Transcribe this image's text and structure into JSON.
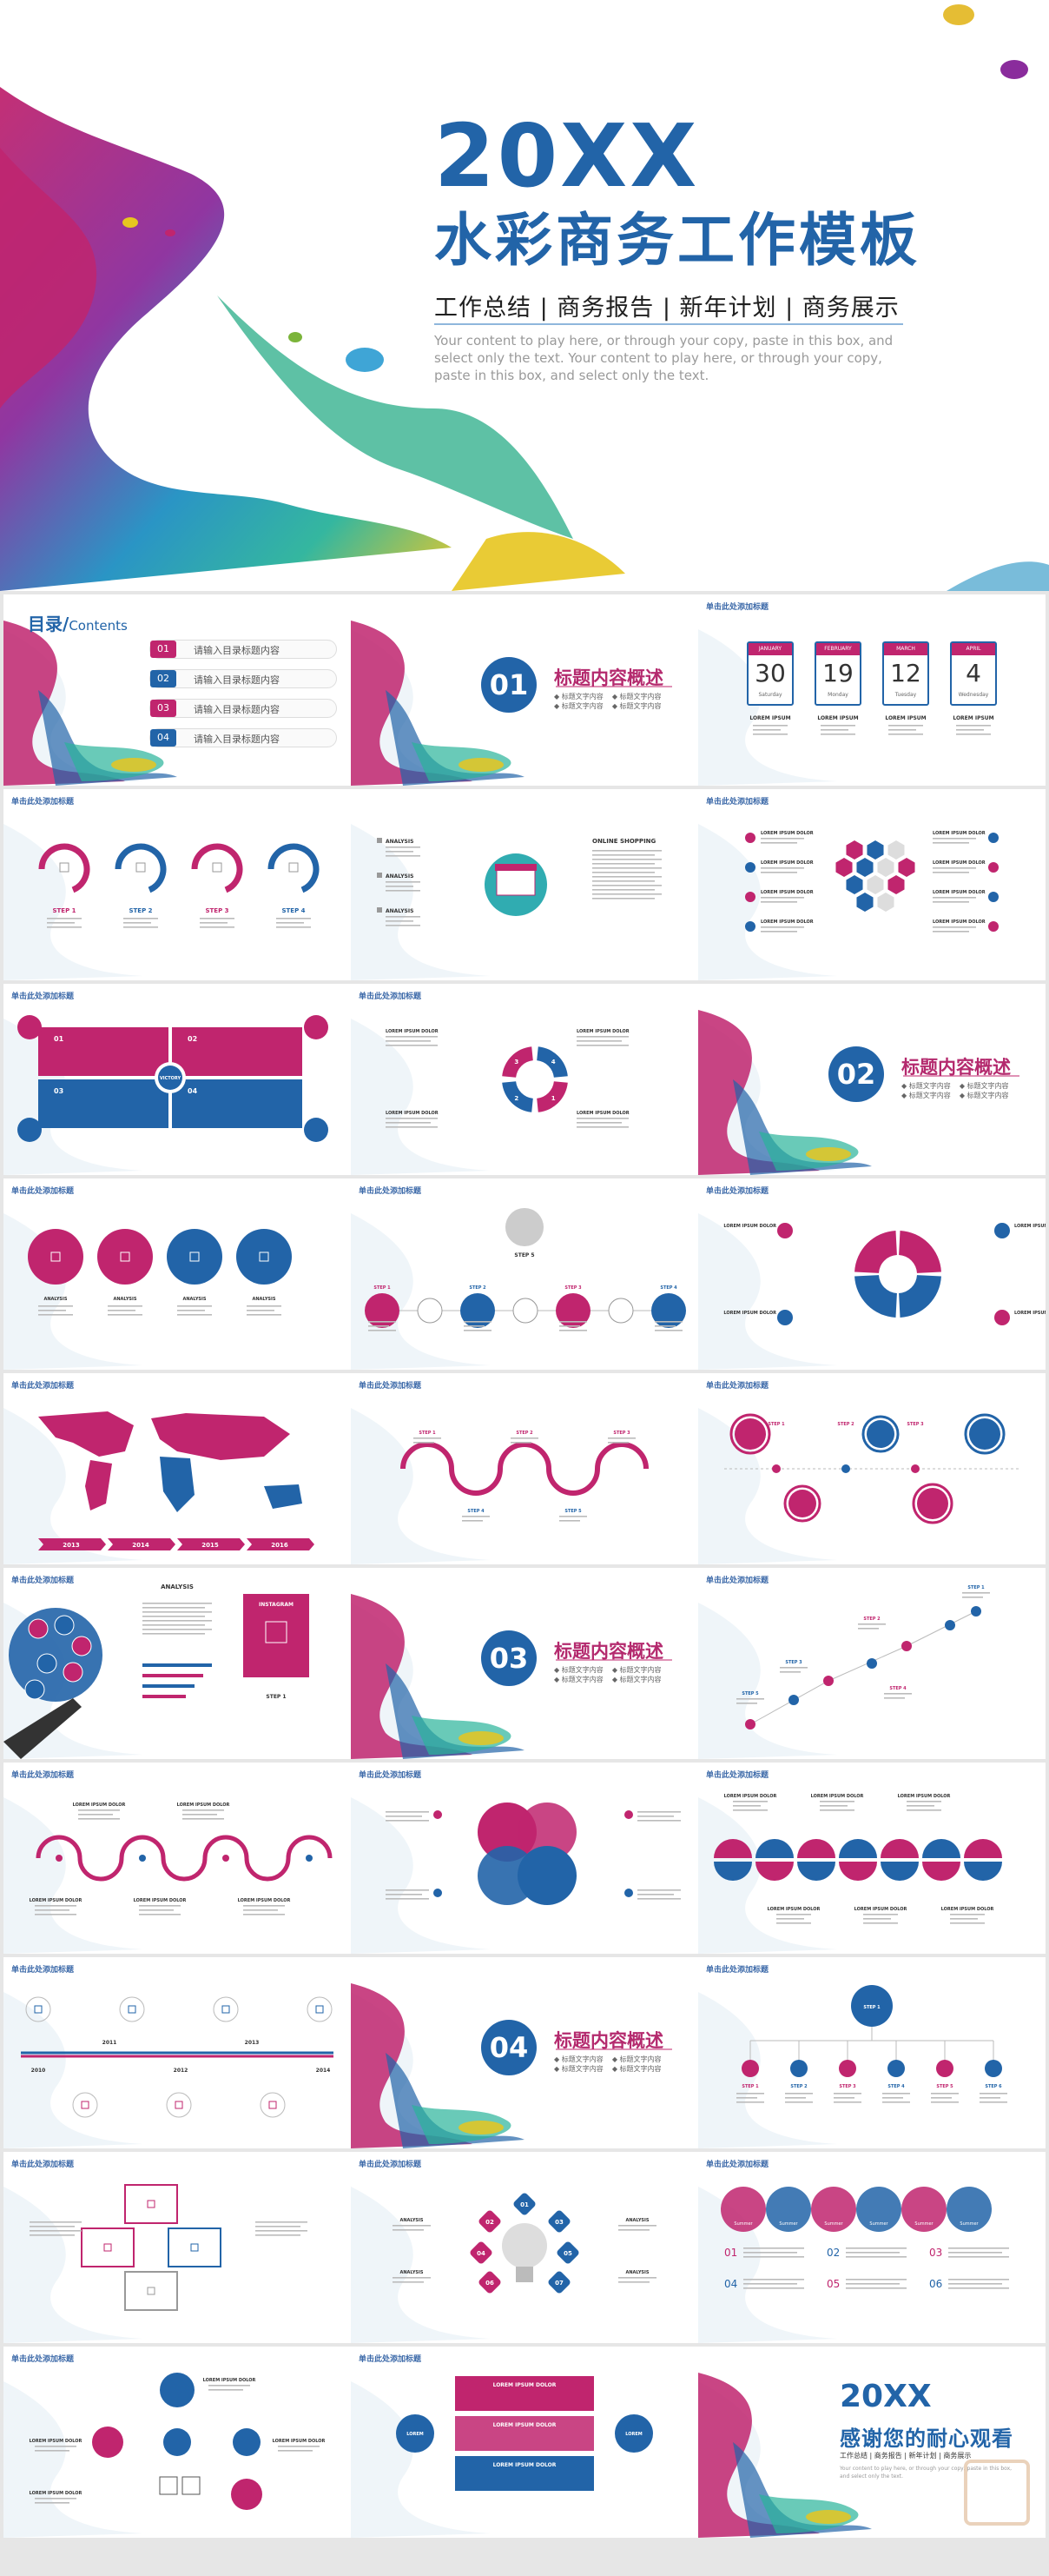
{
  "cover": {
    "big": "20XX",
    "title": "水彩商务工作模板",
    "subtitle": "工作总结 | 商务报告 | 新年计划 | 商务展示",
    "body": "Your content to play here, or through your copy, paste in this box, and select only the text. Your content to play here, or through your copy, paste in this box, and select only the text."
  },
  "slide_heading": "单击此处添加标题",
  "toc": {
    "title": "目录/",
    "title_en": "Contents",
    "items": [
      {
        "num": "01",
        "label": "请输入目录标题内容"
      },
      {
        "num": "02",
        "label": "请输入目录标题内容"
      },
      {
        "num": "03",
        "label": "请输入目录标题内容"
      },
      {
        "num": "04",
        "label": "请输入目录标题内容"
      }
    ]
  },
  "section_title": "标题内容概述",
  "section_sub": "◆ 标题文字内容    ◆ 标题文字内容\n◆ 标题文字内容    ◆ 标题文字内容",
  "sections": [
    "01",
    "02",
    "03",
    "04"
  ],
  "calendar": [
    {
      "month": "JANUARY",
      "day": "30",
      "week": "Saturday"
    },
    {
      "month": "FEBRUARY",
      "day": "19",
      "week": "Monday"
    },
    {
      "month": "MARCH",
      "day": "12",
      "week": "Tuesday"
    },
    {
      "month": "APRIL",
      "day": "4",
      "week": "Wednesday"
    }
  ],
  "calendar_label": "LOREM IPSUM",
  "online_shopping": "ONLINE SHOPPING",
  "analysis": "ANALYSIS",
  "instagram": "INSTAGRAM",
  "victory": "VICTORY",
  "summer": "Summer",
  "lorem_color": "LOREM IPSUM DOLOR",
  "step_labels": [
    "STEP 1",
    "STEP 2",
    "STEP 3",
    "STEP 4",
    "STEP 5",
    "STEP 6"
  ],
  "timeline_years": [
    "2013",
    "2014",
    "2015",
    "2016"
  ],
  "year_timeline": [
    "2010",
    "2011",
    "2012",
    "2013",
    "2014"
  ],
  "numbered": [
    "01",
    "02",
    "03",
    "04",
    "05",
    "06"
  ],
  "process_nums": [
    "1",
    "2",
    "3",
    "4"
  ],
  "bulb_nums": [
    "01",
    "02",
    "03",
    "04",
    "05",
    "06",
    "07"
  ],
  "ending": {
    "big": "20XX",
    "title": "感谢您的耐心观看",
    "subtitle": "工作总结 | 商务报告 | 新年计划 | 商务展示",
    "body": "Your content to play here, or through your copy, paste in this box, and select only the text."
  },
  "colors": {
    "magenta": "#c0256e",
    "blue": "#2264a8",
    "teal": "#1aa3a8",
    "green": "#7bb43a"
  }
}
